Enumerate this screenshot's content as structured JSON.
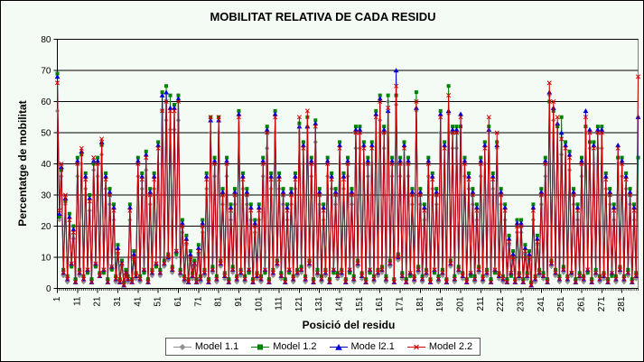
{
  "colors": {
    "background": "#f4faf4",
    "plot_background": "#f4faf4",
    "plot_border": "#808080",
    "gridline": "#000000",
    "axis": "#000000",
    "legend_border": "#5a5a5a"
  },
  "chart_data": {
    "type": "line",
    "title": "MOBILITAT RELATIVA DE CADA RESIDU",
    "xlabel": "Posició del residu",
    "ylabel": "Percentatge de mobilitat",
    "ylim": [
      0,
      80
    ],
    "y_ticks": [
      0,
      10,
      20,
      30,
      40,
      50,
      60,
      70,
      80
    ],
    "x_start": 1,
    "x_end": 289,
    "x_tick_step": 10,
    "x_tick_labels": [
      "1",
      "11",
      "21",
      "31",
      "41",
      "51",
      "61",
      "71",
      "81",
      "91",
      "101",
      "111",
      "121",
      "131",
      "141",
      "151",
      "161",
      "171",
      "181",
      "191",
      "201",
      "211",
      "221",
      "231",
      "241",
      "251",
      "261",
      "271",
      "281"
    ],
    "grid": true,
    "legend_position": "bottom",
    "series": [
      {
        "name": "Model 1.1",
        "color": "#909090",
        "marker": "diamond",
        "values": [
          57,
          22,
          36,
          4,
          27,
          2,
          20,
          7,
          16,
          3,
          36,
          4,
          40,
          2,
          32,
          5,
          25,
          3,
          38,
          7,
          36,
          5,
          43,
          5,
          32,
          3,
          27,
          6,
          22,
          2,
          11,
          3,
          7,
          2,
          4,
          2,
          22,
          3,
          9,
          3,
          36,
          2,
          32,
          5,
          38,
          3,
          27,
          4,
          32,
          7,
          40,
          4,
          57,
          7,
          54,
          9,
          51,
          5,
          51,
          10,
          54,
          4,
          18,
          2,
          14,
          3,
          9,
          3,
          7,
          3,
          11,
          2,
          18,
          4,
          32,
          3,
          50,
          5,
          36,
          2,
          50,
          7,
          27,
          3,
          36,
          3,
          22,
          5,
          27,
          2,
          50,
          4,
          32,
          2,
          27,
          5,
          22,
          3,
          18,
          3,
          22,
          2,
          36,
          5,
          45,
          3,
          32,
          4,
          50,
          7,
          32,
          3,
          27,
          3,
          22,
          5,
          27,
          2,
          32,
          4,
          50,
          5,
          40,
          2,
          52,
          7,
          36,
          3,
          47,
          4,
          27,
          2,
          22,
          4,
          36,
          3,
          32,
          5,
          27,
          3,
          40,
          4,
          32,
          3,
          36,
          5,
          27,
          2,
          45,
          7,
          45,
          3,
          40,
          3,
          36,
          5,
          40,
          2,
          50,
          4,
          54,
          5,
          45,
          2,
          60,
          7,
          36,
          3,
          59,
          9,
          36,
          3,
          40,
          3,
          36,
          4,
          27,
          2,
          57,
          5,
          27,
          2,
          22,
          4,
          36,
          3,
          32,
          5,
          27,
          2,
          50,
          4,
          40,
          3,
          56,
          7,
          45,
          2,
          45,
          5,
          50,
          3,
          36,
          3,
          32,
          4,
          27,
          2,
          22,
          5,
          36,
          2,
          40,
          4,
          50,
          3,
          32,
          5,
          45,
          3,
          27,
          2,
          22,
          3,
          14,
          4,
          9,
          3,
          18,
          3,
          18,
          3,
          11,
          3,
          9,
          2,
          22,
          2,
          14,
          4,
          27,
          3,
          36,
          3,
          62,
          7,
          54,
          4,
          50,
          2,
          43,
          5,
          40,
          2,
          38,
          4,
          27,
          3,
          22,
          3,
          36,
          2,
          50,
          5,
          45,
          3,
          40,
          4,
          45,
          2,
          45,
          3,
          32,
          3,
          27,
          4,
          22,
          2,
          40,
          5,
          36,
          2,
          32,
          4,
          27,
          3,
          22,
          3,
          55
        ]
      },
      {
        "name": "Model 1.2",
        "color": "#008200",
        "marker": "square",
        "values": [
          69,
          23,
          38,
          6,
          28,
          4,
          24,
          7,
          20,
          3,
          42,
          6,
          43,
          4,
          37,
          5,
          30,
          3,
          40,
          7,
          42,
          5,
          46,
          5,
          37,
          3,
          32,
          6,
          27,
          4,
          14,
          3,
          9,
          2,
          6,
          4,
          27,
          3,
          12,
          5,
          42,
          4,
          37,
          5,
          44,
          3,
          32,
          6,
          37,
          7,
          47,
          6,
          63,
          9,
          65,
          11,
          62,
          7,
          59,
          11,
          62,
          6,
          22,
          4,
          17,
          3,
          12,
          5,
          9,
          3,
          14,
          4,
          22,
          6,
          37,
          3,
          55,
          7,
          42,
          4,
          55,
          9,
          32,
          5,
          42,
          3,
          27,
          7,
          32,
          4,
          57,
          6,
          37,
          4,
          32,
          5,
          27,
          3,
          22,
          5,
          27,
          4,
          42,
          5,
          52,
          3,
          37,
          6,
          57,
          9,
          37,
          5,
          32,
          3,
          27,
          5,
          32,
          4,
          37,
          6,
          53,
          7,
          47,
          4,
          55,
          9,
          42,
          3,
          54,
          6,
          32,
          4,
          27,
          6,
          42,
          3,
          37,
          5,
          32,
          5,
          47,
          6,
          37,
          3,
          42,
          5,
          32,
          4,
          52,
          9,
          52,
          5,
          47,
          3,
          42,
          5,
          47,
          4,
          57,
          6,
          62,
          7,
          52,
          4,
          62,
          9,
          42,
          3,
          62,
          11,
          42,
          5,
          47,
          3,
          42,
          4,
          32,
          4,
          63,
          7,
          32,
          4,
          27,
          6,
          42,
          3,
          37,
          5,
          32,
          4,
          57,
          6,
          47,
          3,
          65,
          9,
          52,
          4,
          52,
          7,
          52,
          5,
          42,
          3,
          37,
          4,
          32,
          4,
          27,
          7,
          42,
          4,
          47,
          6,
          52,
          3,
          37,
          5,
          47,
          5,
          32,
          4,
          27,
          3,
          17,
          4,
          12,
          3,
          22,
          5,
          22,
          3,
          14,
          5,
          12,
          2,
          27,
          4,
          17,
          6,
          32,
          5,
          42,
          3,
          60,
          9,
          57,
          6,
          52,
          4,
          55,
          7,
          47,
          4,
          44,
          5,
          32,
          3,
          27,
          5,
          42,
          4,
          52,
          5,
          47,
          3,
          47,
          6,
          52,
          4,
          52,
          5,
          37,
          3,
          32,
          4,
          27,
          4,
          42,
          7,
          42,
          4,
          37,
          6,
          32,
          3,
          27,
          5,
          42
        ]
      },
      {
        "name": "Mode l2.1",
        "color": "#0000d4",
        "marker": "triangle",
        "values": [
          68,
          24,
          39,
          5,
          29,
          3,
          23,
          8,
          19,
          2,
          41,
          5,
          44,
          3,
          36,
          6,
          29,
          2,
          41,
          8,
          41,
          4,
          47,
          6,
          36,
          2,
          31,
          7,
          26,
          3,
          13,
          2,
          8,
          1,
          5,
          3,
          26,
          2,
          11,
          4,
          41,
          3,
          36,
          6,
          43,
          2,
          31,
          5,
          36,
          8,
          46,
          5,
          62,
          8,
          63,
          10,
          58,
          6,
          58,
          12,
          61,
          5,
          21,
          3,
          16,
          2,
          11,
          4,
          8,
          2,
          13,
          3,
          21,
          5,
          36,
          2,
          54,
          6,
          41,
          3,
          54,
          8,
          31,
          4,
          41,
          2,
          26,
          6,
          31,
          3,
          56,
          5,
          36,
          3,
          31,
          6,
          26,
          2,
          21,
          4,
          26,
          3,
          41,
          6,
          51,
          2,
          36,
          5,
          56,
          8,
          36,
          4,
          31,
          2,
          26,
          6,
          31,
          3,
          36,
          5,
          52,
          6,
          46,
          3,
          52,
          8,
          41,
          2,
          53,
          5,
          31,
          3,
          26,
          5,
          41,
          2,
          36,
          6,
          31,
          4,
          46,
          5,
          36,
          2,
          41,
          6,
          31,
          3,
          51,
          8,
          51,
          4,
          46,
          2,
          41,
          6,
          46,
          3,
          56,
          5,
          61,
          6,
          51,
          3,
          57,
          8,
          41,
          2,
          70,
          10,
          41,
          4,
          46,
          2,
          41,
          5,
          31,
          3,
          58,
          6,
          31,
          3,
          26,
          5,
          41,
          2,
          36,
          6,
          31,
          3,
          56,
          5,
          46,
          2,
          57,
          8,
          51,
          3,
          51,
          6,
          56,
          4,
          41,
          2,
          36,
          5,
          31,
          3,
          26,
          6,
          41,
          3,
          46,
          5,
          51,
          2,
          36,
          6,
          46,
          4,
          31,
          3,
          26,
          2,
          16,
          5,
          11,
          2,
          21,
          4,
          21,
          2,
          13,
          4,
          11,
          1,
          26,
          3,
          16,
          5,
          31,
          4,
          41,
          2,
          63,
          8,
          58,
          5,
          53,
          3,
          50,
          6,
          46,
          3,
          43,
          5,
          31,
          2,
          26,
          4,
          41,
          3,
          57,
          6,
          51,
          2,
          46,
          5,
          51,
          3,
          51,
          4,
          36,
          2,
          31,
          5,
          26,
          3,
          46,
          6,
          41,
          3,
          36,
          5,
          31,
          2,
          26,
          4,
          55
        ]
      },
      {
        "name": "Model 2.2",
        "color": "#d00000",
        "marker": "x",
        "values": [
          66,
          25,
          40,
          5,
          30,
          3,
          22,
          8,
          18,
          2,
          40,
          5,
          45,
          3,
          35,
          6,
          28,
          2,
          42,
          8,
          40,
          4,
          48,
          6,
          35,
          2,
          30,
          7,
          25,
          3,
          12,
          2,
          8,
          1,
          5,
          3,
          25,
          2,
          10,
          4,
          40,
          3,
          35,
          6,
          42,
          2,
          30,
          5,
          35,
          8,
          45,
          5,
          57,
          8,
          60,
          10,
          57,
          6,
          57,
          12,
          60,
          5,
          20,
          3,
          15,
          2,
          10,
          4,
          8,
          2,
          12,
          3,
          20,
          5,
          35,
          2,
          55,
          6,
          40,
          3,
          55,
          8,
          30,
          4,
          40,
          2,
          25,
          6,
          30,
          3,
          55,
          5,
          35,
          3,
          30,
          6,
          25,
          2,
          20,
          4,
          25,
          3,
          40,
          6,
          50,
          2,
          35,
          5,
          55,
          8,
          35,
          4,
          30,
          2,
          25,
          6,
          30,
          3,
          35,
          5,
          55,
          6,
          45,
          3,
          57,
          8,
          40,
          2,
          52,
          5,
          30,
          3,
          25,
          5,
          40,
          2,
          35,
          6,
          30,
          4,
          45,
          5,
          35,
          2,
          40,
          6,
          30,
          3,
          50,
          8,
          50,
          4,
          45,
          2,
          40,
          6,
          45,
          3,
          55,
          5,
          60,
          6,
          50,
          3,
          58,
          8,
          40,
          2,
          65,
          10,
          40,
          4,
          45,
          2,
          40,
          5,
          30,
          3,
          60,
          6,
          30,
          3,
          25,
          5,
          40,
          2,
          35,
          6,
          30,
          3,
          55,
          5,
          45,
          2,
          62,
          8,
          50,
          3,
          50,
          6,
          55,
          4,
          40,
          2,
          35,
          5,
          30,
          3,
          25,
          6,
          40,
          3,
          45,
          5,
          55,
          2,
          35,
          6,
          50,
          4,
          30,
          3,
          25,
          2,
          15,
          5,
          10,
          2,
          20,
          4,
          20,
          2,
          12,
          4,
          10,
          1,
          25,
          3,
          15,
          5,
          30,
          4,
          40,
          2,
          66,
          8,
          60,
          5,
          55,
          3,
          48,
          6,
          45,
          3,
          42,
          5,
          30,
          2,
          25,
          4,
          40,
          3,
          55,
          6,
          50,
          2,
          45,
          5,
          50,
          3,
          50,
          4,
          35,
          2,
          30,
          5,
          25,
          3,
          45,
          6,
          40,
          3,
          35,
          5,
          30,
          2,
          25,
          4,
          68
        ]
      }
    ]
  }
}
